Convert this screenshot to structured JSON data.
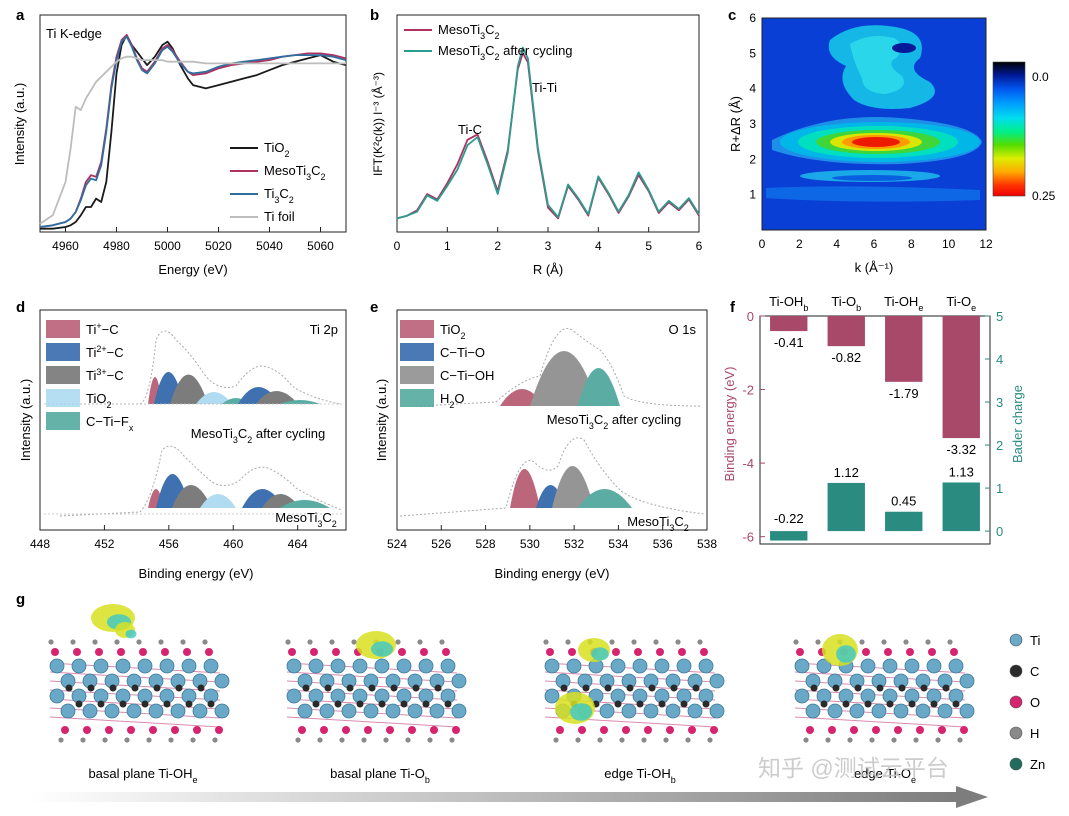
{
  "chart_data": [
    {
      "panel": "a",
      "type": "line",
      "annotation": "Ti K-edge",
      "xlabel": "Energy (eV)",
      "ylabel": "Intensity (a.u.)",
      "xlim": [
        4950,
        5070
      ],
      "ylim": [
        0,
        1.3
      ],
      "xticks": [
        "4960",
        "4980",
        "5000",
        "5020",
        "5040",
        "5060"
      ],
      "x": [
        4950,
        4955,
        4960,
        4962,
        4964,
        4966,
        4968,
        4970,
        4972,
        4974,
        4976,
        4978,
        4980,
        4982,
        4984,
        4986,
        4988,
        4990,
        4992,
        4995,
        4998,
        5000,
        5002,
        5005,
        5008,
        5010,
        5015,
        5020,
        5025,
        5030,
        5035,
        5040,
        5045,
        5050,
        5055,
        5060,
        5065,
        5070
      ],
      "series": [
        {
          "name": "TiO<sub>2</sub>",
          "color": "#1a1a1a",
          "values": [
            0.02,
            0.02,
            0.03,
            0.04,
            0.06,
            0.1,
            0.15,
            0.15,
            0.2,
            0.18,
            0.3,
            0.6,
            0.95,
            1.12,
            1.18,
            1.12,
            1.08,
            1.04,
            1.0,
            1.05,
            1.12,
            1.14,
            1.1,
            1.0,
            0.92,
            0.88,
            0.86,
            0.88,
            0.9,
            0.92,
            0.94,
            0.97,
            1.0,
            1.02,
            1.04,
            1.06,
            1.02,
            1.0
          ]
        },
        {
          "name": "MesoTi<sub>3</sub>C<sub>2</sub>",
          "color": "#b03060",
          "values": [
            0.03,
            0.04,
            0.06,
            0.08,
            0.12,
            0.2,
            0.3,
            0.34,
            0.33,
            0.42,
            0.62,
            0.88,
            1.05,
            1.15,
            1.18,
            1.12,
            1.04,
            0.98,
            0.96,
            1.02,
            1.1,
            1.12,
            1.09,
            1.02,
            0.96,
            0.94,
            0.95,
            0.98,
            1.0,
            1.01,
            1.02,
            1.03,
            1.05,
            1.06,
            1.07,
            1.07,
            1.06,
            1.04
          ]
        },
        {
          "name": "Ti<sub>3</sub>C<sub>2</sub>",
          "color": "#2f6fa0",
          "values": [
            0.03,
            0.04,
            0.06,
            0.08,
            0.12,
            0.19,
            0.28,
            0.32,
            0.31,
            0.4,
            0.6,
            0.86,
            1.03,
            1.14,
            1.17,
            1.11,
            1.03,
            0.97,
            0.95,
            1.01,
            1.09,
            1.11,
            1.08,
            1.01,
            0.96,
            0.95,
            0.96,
            0.99,
            1.01,
            1.02,
            1.03,
            1.04,
            1.05,
            1.06,
            1.06,
            1.06,
            1.05,
            1.03
          ]
        },
        {
          "name": "Ti foil",
          "color": "#bdbdbd",
          "values": [
            0.05,
            0.1,
            0.3,
            0.5,
            0.75,
            0.73,
            0.8,
            0.85,
            0.9,
            0.93,
            0.96,
            0.99,
            1.02,
            1.04,
            1.05,
            1.05,
            1.04,
            1.03,
            1.03,
            1.03,
            1.03,
            1.02,
            1.02,
            1.02,
            1.02,
            1.02,
            1.01,
            1.01,
            1.01,
            1.01,
            1.01,
            1.01,
            1.01,
            1.01,
            1.01,
            1.01,
            1.01,
            1.01
          ]
        }
      ]
    },
    {
      "panel": "b",
      "type": "line",
      "xlabel": "R (Å)",
      "ylabel": "IFT(K²c(k)) l⁻³ (Å⁻³)",
      "xlim": [
        0,
        6
      ],
      "ylim": [
        0,
        1.6
      ],
      "xticks": [
        "0",
        "1",
        "2",
        "3",
        "4",
        "5",
        "6"
      ],
      "annotations": [
        "Ti-C",
        "Ti-Ti"
      ],
      "x": [
        0,
        0.2,
        0.4,
        0.6,
        0.8,
        1.0,
        1.2,
        1.4,
        1.6,
        1.8,
        2.0,
        2.2,
        2.4,
        2.5,
        2.6,
        2.8,
        3.0,
        3.2,
        3.4,
        3.6,
        3.8,
        4.0,
        4.2,
        4.4,
        4.6,
        4.8,
        5.0,
        5.2,
        5.4,
        5.6,
        5.8,
        6.0
      ],
      "series": [
        {
          "name": "MesoTi<sub>3</sub>C<sub>2</sub>",
          "color": "#b03060",
          "values": [
            0.1,
            0.12,
            0.16,
            0.28,
            0.24,
            0.36,
            0.5,
            0.68,
            0.72,
            0.52,
            0.3,
            0.6,
            1.2,
            1.32,
            1.25,
            0.6,
            0.18,
            0.1,
            0.34,
            0.24,
            0.12,
            0.4,
            0.28,
            0.14,
            0.26,
            0.42,
            0.3,
            0.14,
            0.22,
            0.16,
            0.24,
            0.12
          ]
        },
        {
          "name": "MesoTi<sub>3</sub>C<sub>2</sub> after cycling",
          "color": "#2a9d8f",
          "values": [
            0.1,
            0.12,
            0.15,
            0.27,
            0.23,
            0.34,
            0.46,
            0.64,
            0.7,
            0.5,
            0.28,
            0.58,
            1.22,
            1.36,
            1.28,
            0.62,
            0.2,
            0.11,
            0.35,
            0.25,
            0.13,
            0.41,
            0.29,
            0.15,
            0.27,
            0.44,
            0.31,
            0.15,
            0.23,
            0.17,
            0.25,
            0.13
          ]
        }
      ]
    },
    {
      "panel": "c",
      "type": "heatmap",
      "xlabel": "k (Å⁻¹)",
      "ylabel": "R+ΔR (Å)",
      "xlim": [
        0,
        12
      ],
      "ylim": [
        0,
        6
      ],
      "xticks": [
        "0",
        "2",
        "4",
        "6",
        "8",
        "10",
        "12"
      ],
      "yticks": [
        "1",
        "2",
        "3",
        "4",
        "5",
        "6"
      ],
      "colorbar_labels": [
        "0.0",
        "0.25"
      ],
      "colorbar_colors": [
        "#000000",
        "#001a99",
        "#0055ee",
        "#0099ff",
        "#00ddee",
        "#00ee88",
        "#55dd00",
        "#ddee00",
        "#ffaa00",
        "#ff3300",
        "#ee0000"
      ]
    },
    {
      "panel": "d",
      "type": "area",
      "annotation": "Ti 2p",
      "xlabel": "Binding energy (eV)",
      "ylabel": "Intensity (a.u.)",
      "xlim": [
        448,
        467
      ],
      "xticks": [
        "448",
        "452",
        "456",
        "460",
        "464"
      ],
      "curve_labels": [
        "MesoTi<sub>3</sub>C<sub>2</sub> after cycling",
        "MesoTi<sub>3</sub>C<sub>2</sub>"
      ],
      "legend": [
        {
          "name": "Ti<sup>+</sup>−C",
          "color": "#b5566e"
        },
        {
          "name": "Ti<sup>2+</sup>−C",
          "color": "#2b62a8"
        },
        {
          "name": "Ti<sup>3+</sup>−C",
          "color": "#6e6e6e"
        },
        {
          "name": "TiO<sub>2</sub>",
          "color": "#a8d8f0"
        },
        {
          "name": "C−Ti−F<sub>x</sub>",
          "color": "#4aa59a"
        }
      ]
    },
    {
      "panel": "e",
      "type": "area",
      "annotation": "O 1s",
      "xlabel": "Binding energy (eV)",
      "ylabel": "Intensity (a.u.)",
      "xlim": [
        524,
        538
      ],
      "xticks": [
        "524",
        "526",
        "528",
        "530",
        "532",
        "534",
        "536",
        "538"
      ],
      "curve_labels": [
        "MesoTi<sub>3</sub>C<sub>2</sub> after cycling",
        "MesoTi<sub>3</sub>C<sub>2</sub>"
      ],
      "legend": [
        {
          "name": "TiO<sub>2</sub>",
          "color": "#b5566e"
        },
        {
          "name": "C−Ti−O",
          "color": "#2b62a8"
        },
        {
          "name": "C−Ti−OH",
          "color": "#8a8a8a"
        },
        {
          "name": "H<sub>2</sub>O",
          "color": "#4aa59a"
        }
      ]
    },
    {
      "panel": "f",
      "type": "bar",
      "categories": [
        "Ti-OH<sub>b</sub>",
        "Ti-O<sub>b</sub>",
        "Ti-OH<sub>e</sub>",
        "Ti-O<sub>e</sub>"
      ],
      "series": [
        {
          "name": "Binding energy (eV)",
          "color": "#a8496a",
          "values": [
            -0.41,
            -0.82,
            -1.79,
            -3.32
          ],
          "labels": [
            "-0.41",
            "-0.82",
            "-1.79",
            "-3.32"
          ]
        },
        {
          "name": "Bader charge",
          "color": "#2a8c80",
          "values": [
            -0.22,
            1.12,
            0.45,
            1.13
          ],
          "labels": [
            "-0.22",
            "1.12",
            "0.45",
            "1.13"
          ]
        }
      ],
      "ylabel_left": "Binding energy (eV)",
      "ylabel_right": "Bader charge",
      "ylim_left": [
        -6.2,
        0
      ],
      "ylim_right": [
        -0.3,
        5
      ],
      "yticks_left": [
        "0",
        "-2",
        "-4",
        "-6"
      ],
      "yticks_right": [
        "0",
        "1",
        "2",
        "3",
        "4",
        "5"
      ]
    },
    {
      "panel": "g",
      "type": "diagram",
      "structures": [
        "basal plane Ti-OH<tspan baseline-shift='sub' font-size='9'>e</tspan>",
        "basal plane Ti-O<tspan baseline-shift='sub' font-size='9'>b</tspan>",
        "edge Ti-OH<tspan baseline-shift='sub' font-size='9'>b</tspan>",
        "edge Ti-O<tspan baseline-shift='sub' font-size='9'>e</tspan>"
      ],
      "atom_legend": [
        {
          "name": "Ti",
          "color": "#6aa8c8"
        },
        {
          "name": "C",
          "color": "#2a2a2a"
        },
        {
          "name": "O",
          "color": "#d6246e"
        },
        {
          "name": "H",
          "color": "#8a8a8a"
        },
        {
          "name": "Zn",
          "color": "#1f6b5c"
        }
      ]
    }
  ],
  "panel_letters": [
    "a",
    "b",
    "c",
    "d",
    "e",
    "f",
    "g"
  ],
  "watermark": "知乎 @测试云平台"
}
